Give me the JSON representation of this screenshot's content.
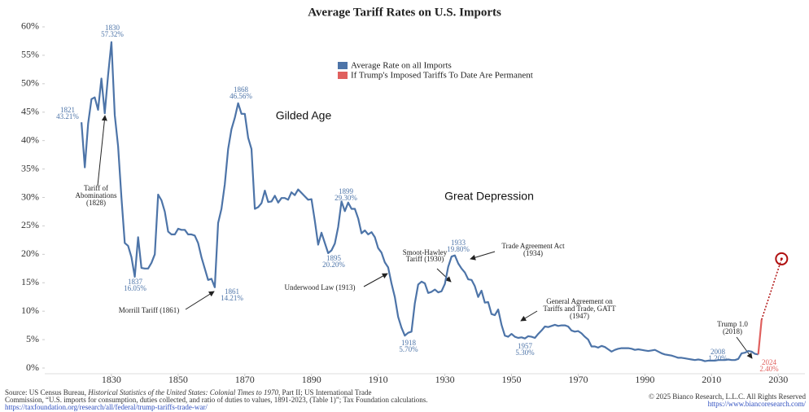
{
  "chart_data": {
    "type": "line",
    "title": "Average Tariff Rates on U.S. Imports",
    "xlim": [
      1810,
      2038
    ],
    "ylim": [
      -1,
      61
    ],
    "xticks": [
      1830,
      1850,
      1870,
      1890,
      1910,
      1930,
      1950,
      1970,
      1990,
      2010,
      2030
    ],
    "yticks": [
      {
        "value": 0,
        "label": "0%"
      },
      {
        "value": 5,
        "label": "5%"
      },
      {
        "value": 10,
        "label": "10%"
      },
      {
        "value": 15,
        "label": "15%"
      },
      {
        "value": 20,
        "label": "20%"
      },
      {
        "value": 25,
        "label": "25%"
      },
      {
        "value": 30,
        "label": "30%"
      },
      {
        "value": 35,
        "label": "35%"
      },
      {
        "value": 40,
        "label": "40%"
      },
      {
        "value": 45,
        "label": "45%"
      },
      {
        "value": 50,
        "label": "50%"
      },
      {
        "value": 55,
        "label": "55%"
      },
      {
        "value": 60,
        "label": "60%"
      }
    ],
    "series": [
      {
        "name": "Average Rate on all Imports",
        "color": "#4d74a8",
        "x": [
          1821,
          1822,
          1823,
          1824,
          1825,
          1826,
          1827,
          1828,
          1829,
          1830,
          1831,
          1832,
          1833,
          1834,
          1835,
          1836,
          1837,
          1838,
          1839,
          1840,
          1841,
          1842,
          1843,
          1844,
          1845,
          1846,
          1847,
          1848,
          1849,
          1850,
          1851,
          1852,
          1853,
          1854,
          1855,
          1856,
          1857,
          1858,
          1859,
          1860,
          1861,
          1862,
          1863,
          1864,
          1865,
          1866,
          1867,
          1868,
          1869,
          1870,
          1871,
          1872,
          1873,
          1874,
          1875,
          1876,
          1877,
          1878,
          1879,
          1880,
          1881,
          1882,
          1883,
          1884,
          1885,
          1886,
          1887,
          1888,
          1889,
          1890,
          1891,
          1892,
          1893,
          1894,
          1895,
          1896,
          1897,
          1898,
          1899,
          1900,
          1901,
          1902,
          1903,
          1904,
          1905,
          1906,
          1907,
          1908,
          1909,
          1910,
          1911,
          1912,
          1913,
          1914,
          1915,
          1916,
          1917,
          1918,
          1919,
          1920,
          1921,
          1922,
          1923,
          1924,
          1925,
          1926,
          1927,
          1928,
          1929,
          1930,
          1931,
          1932,
          1933,
          1934,
          1935,
          1936,
          1937,
          1938,
          1939,
          1940,
          1941,
          1942,
          1943,
          1944,
          1945,
          1946,
          1947,
          1948,
          1949,
          1950,
          1951,
          1952,
          1953,
          1954,
          1955,
          1956,
          1957,
          1958,
          1959,
          1960,
          1961,
          1962,
          1963,
          1964,
          1965,
          1966,
          1967,
          1968,
          1969,
          1970,
          1971,
          1972,
          1973,
          1974,
          1975,
          1976,
          1977,
          1978,
          1979,
          1980,
          1981,
          1982,
          1983,
          1984,
          1985,
          1986,
          1987,
          1988,
          1989,
          1990,
          1991,
          1992,
          1993,
          1994,
          1995,
          1996,
          1997,
          1998,
          1999,
          2000,
          2001,
          2002,
          2003,
          2004,
          2005,
          2006,
          2007,
          2008,
          2009,
          2010,
          2011,
          2012,
          2013,
          2014,
          2015,
          2016,
          2017,
          2018,
          2019,
          2020,
          2021,
          2022,
          2023,
          2024
        ],
        "values": [
          43.21,
          35.3,
          43,
          47.3,
          47.6,
          45.4,
          50.9,
          44.8,
          51.5,
          57.32,
          44.5,
          39,
          30,
          22,
          21.5,
          19.5,
          16.05,
          23,
          17.6,
          17.5,
          17.5,
          18.5,
          20,
          30.5,
          29.5,
          27.5,
          24,
          23.5,
          23.5,
          24.5,
          24.3,
          24.3,
          23.5,
          23.5,
          23.3,
          22,
          19.5,
          17.5,
          15.5,
          15.7,
          14.21,
          25.5,
          28,
          32.3,
          38.5,
          42,
          44,
          46.56,
          44.7,
          44.7,
          40.5,
          38.5,
          28,
          28.3,
          29,
          31.2,
          29.2,
          29.3,
          30.3,
          29.1,
          29.9,
          29.9,
          29.6,
          30.9,
          30.4,
          31.4,
          30.8,
          30.2,
          29.6,
          29.7,
          25.9,
          21.7,
          23.8,
          22,
          20.2,
          20.7,
          21.9,
          24.8,
          29.3,
          27.6,
          29.1,
          28,
          28,
          26.3,
          23.7,
          24.2,
          23.5,
          23.9,
          23,
          21.1,
          20.3,
          18.6,
          17.7,
          14.9,
          12.5,
          9,
          7.1,
          5.7,
          6.2,
          6.4,
          11.4,
          14.7,
          15.2,
          14.9,
          13.2,
          13.4,
          13.8,
          13.3,
          13.5,
          14.8,
          17.8,
          19.6,
          19.8,
          18.4,
          17.5,
          16.8,
          15.6,
          15.5,
          14.4,
          12.5,
          13.6,
          11.5,
          11.6,
          9.5,
          9.3,
          10.3,
          7.6,
          5.7,
          5.5,
          6,
          5.5,
          5.3,
          5.4,
          5.2,
          5.6,
          5.5,
          5.3,
          6,
          6.6,
          7.3,
          7.2,
          7.4,
          7.6,
          7.4,
          7.5,
          7.5,
          7.3,
          6.6,
          6.4,
          6.5,
          6.1,
          5.5,
          5,
          3.8,
          3.8,
          3.6,
          3.9,
          3.7,
          3.3,
          2.9,
          3.2,
          3.4,
          3.5,
          3.5,
          3.5,
          3.4,
          3.2,
          3.3,
          3.2,
          3.1,
          3,
          3.1,
          3.2,
          2.9,
          2.6,
          2.4,
          2.3,
          2.2,
          2,
          1.8,
          1.8,
          1.7,
          1.6,
          1.5,
          1.4,
          1.5,
          1.4,
          1.2,
          1.3,
          1.3,
          1.3,
          1.4,
          1.4,
          1.4,
          1.5,
          1.4,
          1.4,
          1.6,
          2.6,
          2.7,
          3,
          2.9,
          2.5,
          2.4
        ]
      },
      {
        "name": "If Trump's Imposed Tariffs To Date Are Permanent",
        "color": "#e0605e",
        "x": [
          2024,
          2025,
          2031
        ],
        "values": [
          2.4,
          8.5,
          19.2
        ]
      }
    ],
    "legend": "upper-center",
    "grid": false,
    "annotations": [
      {
        "lines": [
          "1821",
          "43.21%"
        ]
      },
      {
        "lines": [
          "1830",
          "57.32%"
        ]
      },
      {
        "lines": [
          "Tariff of",
          "Abominations",
          "(1828)"
        ]
      },
      {
        "lines": [
          "1837",
          "16.05%"
        ]
      },
      {
        "lines": [
          "Morrill Tariff (1861)"
        ]
      },
      {
        "lines": [
          "1868",
          "46.56%"
        ]
      },
      {
        "lines": [
          "1861",
          "14.21%"
        ]
      },
      {
        "lines": [
          "Gilded Age"
        ]
      },
      {
        "lines": [
          "1899",
          "29.30%"
        ]
      },
      {
        "lines": [
          "1895",
          "20.20%"
        ]
      },
      {
        "lines": [
          "Great Depression"
        ]
      },
      {
        "lines": [
          "Underwood Law (1913)"
        ]
      },
      {
        "lines": [
          "Smoot-Hawley",
          "Tariff (1930)"
        ]
      },
      {
        "lines": [
          "1933",
          "19.80%"
        ]
      },
      {
        "lines": [
          "Trade Agreement Act",
          "(1934)"
        ]
      },
      {
        "lines": [
          "General Agreement on",
          "Tariffs and Trade, GATT",
          "(1947)"
        ]
      },
      {
        "lines": [
          "1918",
          "5.70%"
        ]
      },
      {
        "lines": [
          "1957",
          "5.30%"
        ]
      },
      {
        "lines": [
          "Trump 1.0",
          "(2018)"
        ]
      },
      {
        "lines": [
          "2008",
          "1.20%"
        ]
      },
      {
        "lines": [
          "2024",
          "2.40%"
        ]
      }
    ]
  },
  "footer": {
    "source_line1": [
      "Source: US Census Bureau, ",
      "Historical Statistics of the United States: Colonial Times to 1970",
      ", Part II; US International Trade"
    ],
    "source_line2": "Commission, “U.S. imports for consumption, duties collected, and ratio of duties to values, 1891-2023, (Table 1)”; Tax Foundation calculations.",
    "source_line3": "https://taxfoundation.org/research/all/federal/trump-tariffs-trade-war/",
    "copyright": "© 2025 Bianco Research, L.L.C. All Rights Reserved",
    "website": "https://www.biancoresearch.com/"
  }
}
